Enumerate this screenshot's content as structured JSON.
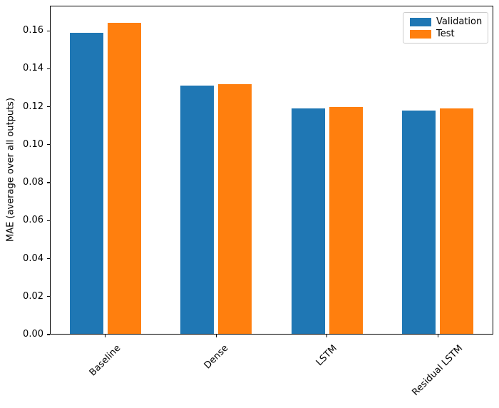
{
  "chart_data": {
    "type": "bar",
    "title": "",
    "categories": [
      "Baseline",
      "Dense",
      "LSTM",
      "Residual LSTM"
    ],
    "x_positions": [
      0,
      1,
      2,
      3
    ],
    "series": [
      {
        "name": "Validation",
        "color": "#1f77b4",
        "values": [
          0.159,
          0.131,
          0.119,
          0.118
        ]
      },
      {
        "name": "Test",
        "color": "#ff7f0e",
        "values": [
          0.164,
          0.132,
          0.12,
          0.119
        ]
      }
    ],
    "xlabel": "",
    "ylabel": "MAE (average over all outputs)",
    "ylim": [
      0,
      0.1732
    ],
    "xlim": [
      -0.5,
      3.5
    ],
    "yticks": [
      0.0,
      0.02,
      0.04,
      0.06,
      0.08,
      0.1,
      0.12,
      0.14,
      0.16
    ],
    "ytick_labels": [
      "0.00",
      "0.02",
      "0.04",
      "0.06",
      "0.08",
      "0.10",
      "0.12",
      "0.14",
      "0.16"
    ],
    "bar_width": 0.3,
    "bar_offset": 0.17,
    "xtick_rotation_deg": 45,
    "grid": false,
    "legend": {
      "position": "upper right",
      "labels": [
        "Validation",
        "Test"
      ]
    }
  },
  "figure": {
    "background": "#ffffff",
    "spine_color": "#000000",
    "tick_color": "#000000",
    "text_color": "#000000",
    "legend_border_color": "#cccccc"
  }
}
